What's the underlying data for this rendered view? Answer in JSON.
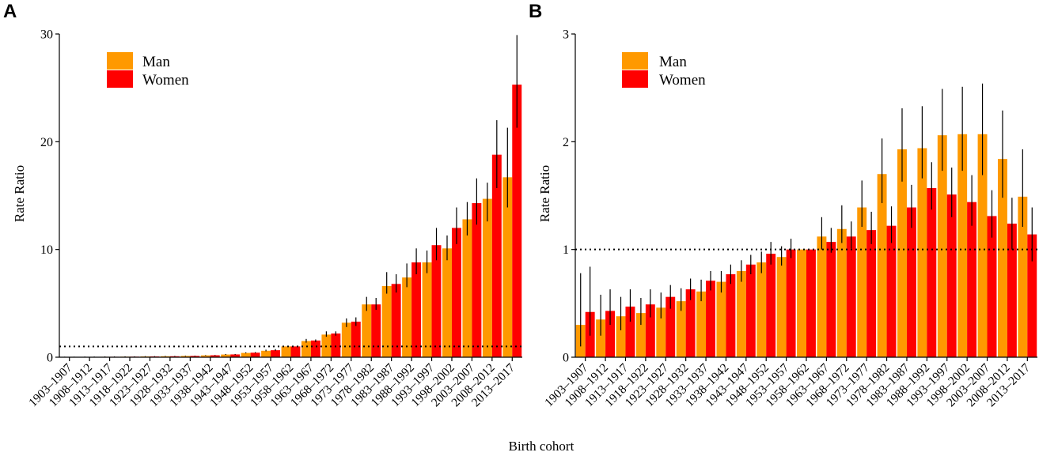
{
  "figure": {
    "xlabel": "Birth cohort"
  },
  "colors": {
    "man": "#FF9900",
    "women": "#FF0000",
    "error_bar": "#000000",
    "axis": "#000000",
    "reference_line": "#000000"
  },
  "chart_data": [
    {
      "type": "bar",
      "panel": "A",
      "xlabel": "Birth cohort",
      "ylabel": "Rate Ratio",
      "ylim": [
        0,
        30
      ],
      "yticks": [
        0,
        10,
        20,
        30
      ],
      "ytick_labels": [
        "0",
        "10",
        "20",
        "30"
      ],
      "reference_line": 1,
      "legend_position": "top-left",
      "categories": [
        "1903–1907",
        "1908–1912",
        "1913–1917",
        "1918–1922",
        "1923–1927",
        "1928–1932",
        "1933–1937",
        "1938–1942",
        "1943–1947",
        "1948–1952",
        "1953–1957",
        "1958–1962",
        "1963–1967",
        "1968–1972",
        "1973–1977",
        "1978–1982",
        "1983–1987",
        "1988–1992",
        "1993–1997",
        "1998–2002",
        "2003–2007",
        "2008–2012",
        "2013–2017"
      ],
      "series": [
        {
          "name": "Man",
          "color": "#FF9900",
          "values": [
            0.02,
            0.03,
            0.04,
            0.05,
            0.07,
            0.09,
            0.12,
            0.17,
            0.25,
            0.4,
            0.6,
            1.0,
            1.5,
            2.1,
            3.2,
            4.9,
            6.6,
            7.4,
            8.8,
            10.1,
            12.8,
            14.7,
            16.7
          ],
          "lower": [
            0.0,
            0.01,
            0.02,
            0.03,
            0.05,
            0.07,
            0.1,
            0.15,
            0.22,
            0.36,
            0.55,
            1.0,
            1.35,
            1.9,
            2.8,
            4.3,
            5.9,
            6.5,
            7.8,
            9.0,
            11.3,
            12.6,
            13.9
          ],
          "upper": [
            0.05,
            0.06,
            0.07,
            0.08,
            0.1,
            0.12,
            0.15,
            0.2,
            0.3,
            0.45,
            0.7,
            1.0,
            1.7,
            2.4,
            3.6,
            5.6,
            7.9,
            8.7,
            9.9,
            11.3,
            14.4,
            16.2,
            21.3
          ]
        },
        {
          "name": "Women",
          "color": "#FF0000",
          "values": [
            0.02,
            0.03,
            0.04,
            0.05,
            0.07,
            0.09,
            0.12,
            0.18,
            0.26,
            0.42,
            0.65,
            1.0,
            1.55,
            2.2,
            3.3,
            4.9,
            6.8,
            8.8,
            10.4,
            12.0,
            14.3,
            18.8,
            25.3
          ],
          "lower": [
            0.0,
            0.01,
            0.02,
            0.03,
            0.05,
            0.07,
            0.1,
            0.15,
            0.23,
            0.38,
            0.6,
            1.0,
            1.4,
            2.0,
            2.9,
            4.4,
            6.0,
            7.7,
            9.0,
            10.5,
            12.3,
            15.7,
            21.3
          ],
          "upper": [
            0.05,
            0.06,
            0.07,
            0.08,
            0.1,
            0.12,
            0.15,
            0.21,
            0.3,
            0.47,
            0.75,
            1.0,
            1.65,
            2.4,
            3.7,
            5.5,
            7.7,
            10.1,
            12.0,
            13.9,
            16.6,
            22.0,
            29.9
          ]
        }
      ]
    },
    {
      "type": "bar",
      "panel": "B",
      "xlabel": "Birth cohort",
      "ylabel": "Rate Ratio",
      "ylim": [
        0,
        3
      ],
      "yticks": [
        0,
        1,
        2,
        3
      ],
      "ytick_labels": [
        "0",
        "1",
        "2",
        "3"
      ],
      "reference_line": 1,
      "legend_position": "top-left",
      "categories": [
        "1903–1907",
        "1908–1912",
        "1913–1917",
        "1918–1922",
        "1923–1927",
        "1928–1932",
        "1933–1937",
        "1938–1942",
        "1943–1947",
        "1948–1952",
        "1953–1957",
        "1958–1962",
        "1963–1967",
        "1968–1972",
        "1973–1977",
        "1978–1982",
        "1983–1987",
        "1988–1992",
        "1993–1997",
        "1998–2002",
        "2003–2007",
        "2008–2012",
        "2013–2017"
      ],
      "series": [
        {
          "name": "Man",
          "color": "#FF9900",
          "values": [
            0.3,
            0.35,
            0.38,
            0.41,
            0.46,
            0.52,
            0.61,
            0.7,
            0.8,
            0.88,
            0.93,
            1.0,
            1.12,
            1.19,
            1.39,
            1.7,
            1.93,
            1.94,
            2.06,
            2.07,
            2.07,
            1.84,
            1.49
          ],
          "lower": [
            0.1,
            0.2,
            0.25,
            0.3,
            0.36,
            0.43,
            0.52,
            0.6,
            0.7,
            0.78,
            0.85,
            1.0,
            1.0,
            1.06,
            1.21,
            1.43,
            1.63,
            1.66,
            1.73,
            1.73,
            1.69,
            1.48,
            1.21
          ],
          "upper": [
            0.78,
            0.58,
            0.56,
            0.55,
            0.6,
            0.64,
            0.72,
            0.8,
            0.9,
            0.98,
            1.03,
            1.0,
            1.3,
            1.41,
            1.64,
            2.03,
            2.31,
            2.33,
            2.49,
            2.51,
            2.54,
            2.29,
            1.93
          ]
        },
        {
          "name": "Women",
          "color": "#FF0000",
          "values": [
            0.42,
            0.43,
            0.47,
            0.49,
            0.56,
            0.63,
            0.71,
            0.77,
            0.86,
            0.96,
            1.0,
            1.0,
            1.07,
            1.12,
            1.18,
            1.22,
            1.39,
            1.57,
            1.51,
            1.44,
            1.31,
            1.24,
            1.14
          ],
          "lower": [
            0.2,
            0.3,
            0.33,
            0.37,
            0.45,
            0.53,
            0.62,
            0.68,
            0.77,
            0.86,
            0.92,
            1.0,
            0.97,
            1.01,
            1.05,
            1.06,
            1.2,
            1.37,
            1.3,
            1.22,
            1.11,
            1.0,
            0.89
          ],
          "upper": [
            0.84,
            0.63,
            0.63,
            0.63,
            0.67,
            0.73,
            0.8,
            0.86,
            0.95,
            1.07,
            1.1,
            1.0,
            1.2,
            1.26,
            1.35,
            1.4,
            1.6,
            1.81,
            1.76,
            1.69,
            1.55,
            1.48,
            1.39
          ]
        }
      ]
    }
  ]
}
